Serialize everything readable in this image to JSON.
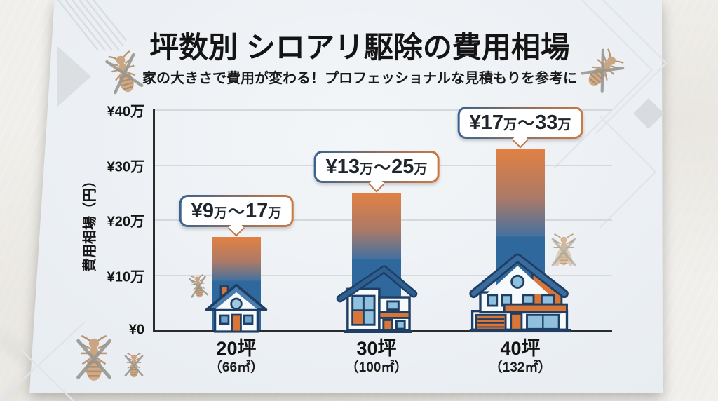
{
  "title": "坪数別 シロアリ駆除の費用相場",
  "subtitle": "家の大きさで費用が変わる！プロフェッショナルな見積もりを参考に",
  "colors": {
    "accent_orange": "#d9793c",
    "bar_blue": "#2f689c",
    "outline_navy": "#1f3e63",
    "card_background": "#edf1f5",
    "page_background": "#f1efeb",
    "text": "#141414"
  },
  "icons": {
    "termite": "termite-icon",
    "winged_termite": "winged-termite-icon",
    "house_small": "house-small-icon",
    "house_medium": "house-medium-icon",
    "house_large": "house-large-icon"
  },
  "chart_data": {
    "type": "bar",
    "title": "坪数別 シロアリ駆除の費用相場",
    "ylabel": "費用相場（円）",
    "ylim": [
      0,
      40
    ],
    "unit": "万円",
    "grid": true,
    "yticks": [
      {
        "value": 0,
        "label": "¥0"
      },
      {
        "value": 10,
        "label": "¥10万"
      },
      {
        "value": 20,
        "label": "¥20万"
      },
      {
        "value": 30,
        "label": "¥30万"
      },
      {
        "value": 40,
        "label": "¥40万"
      }
    ],
    "categories": [
      "20坪",
      "30坪",
      "40坪"
    ],
    "bars": [
      {
        "category": "20坪",
        "area": "（66㎡）",
        "low": 9,
        "high": 17,
        "callout": "¥9万〜17万"
      },
      {
        "category": "30坪",
        "area": "（100㎡）",
        "low": 13,
        "high": 25,
        "callout": "¥13万〜25万"
      },
      {
        "category": "40坪",
        "area": "（132㎡）",
        "low": 17,
        "high": 33,
        "callout": "¥17万〜33万"
      }
    ],
    "callout_format": {
      "currency": "¥",
      "unit": "万",
      "range_separator": "〜"
    }
  }
}
